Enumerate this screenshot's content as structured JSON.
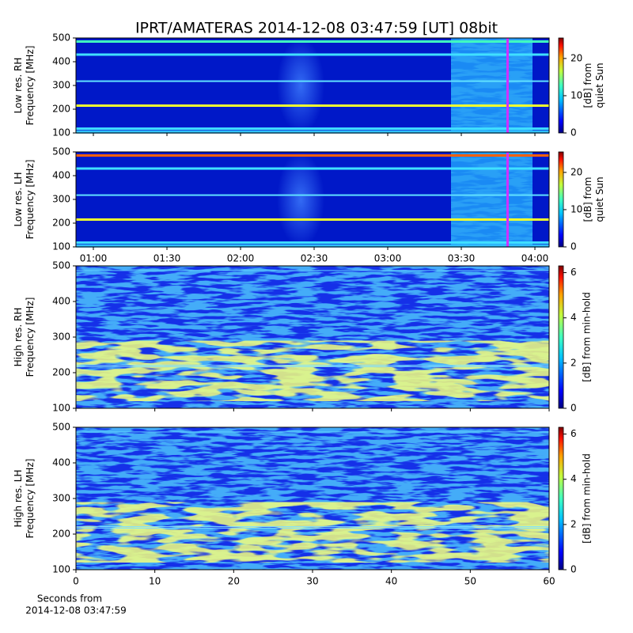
{
  "chart_data": [
    {
      "type": "spectrogram",
      "title": "IPRT/AMATERAS 2014-12-08 03:47:59 [UT]   08bit",
      "ylabel": [
        "Low res. RH",
        "Frequency [MHz]"
      ],
      "ylim": [
        100,
        500
      ],
      "yticks": [
        100,
        200,
        300,
        400,
        500
      ],
      "xlim": [
        52.9,
        245.8
      ],
      "xticks": [
        60,
        90,
        120,
        150,
        180,
        210,
        240
      ],
      "tick_labels": false,
      "resolution": "low",
      "colorbar": {
        "label": [
          "[dB] from",
          "quiet Sun"
        ],
        "lim": [
          0,
          25.5
        ],
        "ticks": [
          0,
          10,
          20
        ],
        "palette": "jet"
      }
    },
    {
      "type": "spectrogram",
      "ylabel": [
        "Low res. LH",
        "Frequency [MHz]"
      ],
      "ylim": [
        100,
        500
      ],
      "yticks": [
        100,
        200,
        300,
        400,
        500
      ],
      "xlim": [
        52.9,
        245.8
      ],
      "xticks": [
        {
          "value": 60,
          "label": "01:00"
        },
        {
          "value": 90,
          "label": "01:30"
        },
        {
          "value": 120,
          "label": "02:00"
        },
        {
          "value": 150,
          "label": "02:30"
        },
        {
          "value": 180,
          "label": "03:00"
        },
        {
          "value": 210,
          "label": "03:30"
        },
        {
          "value": 240,
          "label": "04:00"
        }
      ],
      "tick_labels": true,
      "resolution": "low",
      "colorbar": {
        "label": [
          "[dB] from",
          "quiet Sun"
        ],
        "lim": [
          0,
          25.5
        ],
        "ticks": [
          0,
          10,
          20
        ],
        "palette": "jet"
      }
    },
    {
      "type": "spectrogram",
      "ylabel": [
        "High res. RH",
        "Frequency [MHz]"
      ],
      "ylim": [
        100,
        500
      ],
      "yticks": [
        100,
        200,
        300,
        400,
        500
      ],
      "xlim": [
        0,
        60
      ],
      "xticks": [
        0,
        10,
        20,
        30,
        40,
        50,
        60
      ],
      "tick_labels": false,
      "resolution": "high",
      "colorbar": {
        "label": [
          "[dB] from min-hold"
        ],
        "lim": [
          0,
          6.3
        ],
        "ticks": [
          0,
          2,
          4,
          6
        ],
        "palette": "jet"
      }
    },
    {
      "type": "spectrogram",
      "ylabel": [
        "High res. LH",
        "Frequency [MHz]"
      ],
      "ylim": [
        100,
        500
      ],
      "yticks": [
        100,
        200,
        300,
        400,
        500
      ],
      "xlim": [
        0,
        60
      ],
      "xticks": [
        0,
        10,
        20,
        30,
        40,
        50,
        60
      ],
      "tick_labels": true,
      "resolution": "high",
      "xlabel": [
        "Seconds from",
        "2014-12-08 03:47:59"
      ],
      "colorbar": {
        "label": [
          "[dB] from min-hold"
        ],
        "lim": [
          0,
          6.3
        ],
        "ticks": [
          0,
          2,
          4,
          6
        ],
        "palette": "jet"
      }
    }
  ]
}
